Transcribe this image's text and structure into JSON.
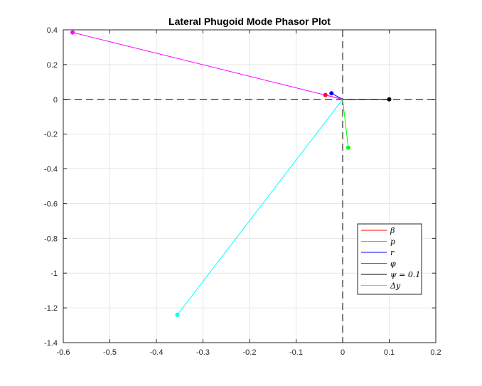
{
  "chart_data": {
    "type": "line",
    "title": "Lateral Phugoid Mode Phasor Plot",
    "xlabel": "",
    "ylabel": "",
    "xlim": [
      -0.6,
      0.2
    ],
    "ylim": [
      -1.4,
      0.4
    ],
    "grid": true,
    "x_ticks": [
      "-0.6",
      "-0.5",
      "-0.4",
      "-0.3",
      "-0.2",
      "-0.1",
      "0",
      "0.1",
      "0.2"
    ],
    "y_ticks": [
      "0.4",
      "0.2",
      "0",
      "-0.2",
      "-0.4",
      "-0.6",
      "-0.8",
      "-1",
      "-1.2",
      "-1.4"
    ],
    "legend_position": "bottom-right",
    "series": [
      {
        "name": "β",
        "color": "#ff0000",
        "x": [
          0,
          -0.037
        ],
        "y": [
          0,
          0.025
        ]
      },
      {
        "name": "p",
        "color": "#00ff00",
        "x": [
          0,
          0.012
        ],
        "y": [
          0,
          -0.278
        ]
      },
      {
        "name": "r",
        "color": "#0000ff",
        "x": [
          0,
          -0.024
        ],
        "y": [
          0,
          0.035
        ]
      },
      {
        "name": "φ",
        "color": "#ff00ff",
        "x": [
          0,
          -0.58
        ],
        "y": [
          0,
          0.385
        ]
      },
      {
        "name": "ψ = 0.1",
        "color": "#000000",
        "x": [
          0,
          0.1
        ],
        "y": [
          0,
          0
        ]
      },
      {
        "name": "Δy",
        "color": "#00ffff",
        "x": [
          0,
          -0.355
        ],
        "y": [
          0,
          -1.24
        ]
      }
    ]
  }
}
